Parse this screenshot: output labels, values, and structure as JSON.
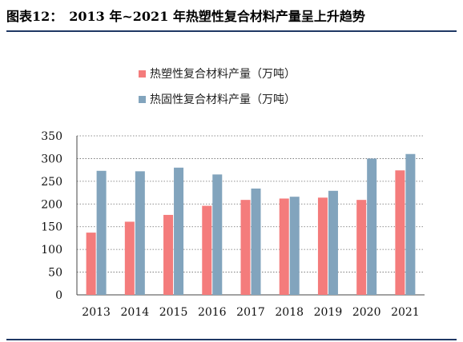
{
  "figure": {
    "label": "图表12：",
    "title": "2013 年~2021 年热塑性复合材料产量呈上升趋势"
  },
  "chart_data": {
    "type": "bar",
    "categories": [
      "2013",
      "2014",
      "2015",
      "2016",
      "2017",
      "2018",
      "2019",
      "2020",
      "2021"
    ],
    "series": [
      {
        "name": "热塑性复合材料产量（万吨）",
        "color": "#f47c7c",
        "values": [
          137,
          161,
          176,
          196,
          209,
          212,
          214,
          209,
          274
        ]
      },
      {
        "name": "热固性复合材料产量（万吨）",
        "color": "#82a4bd",
        "values": [
          273,
          272,
          280,
          265,
          234,
          216,
          229,
          300,
          310
        ]
      }
    ],
    "ylim": [
      0,
      350
    ],
    "yticks": [
      0,
      50,
      100,
      150,
      200,
      250,
      300,
      350
    ],
    "grid": true,
    "legend_position": "top-center"
  }
}
